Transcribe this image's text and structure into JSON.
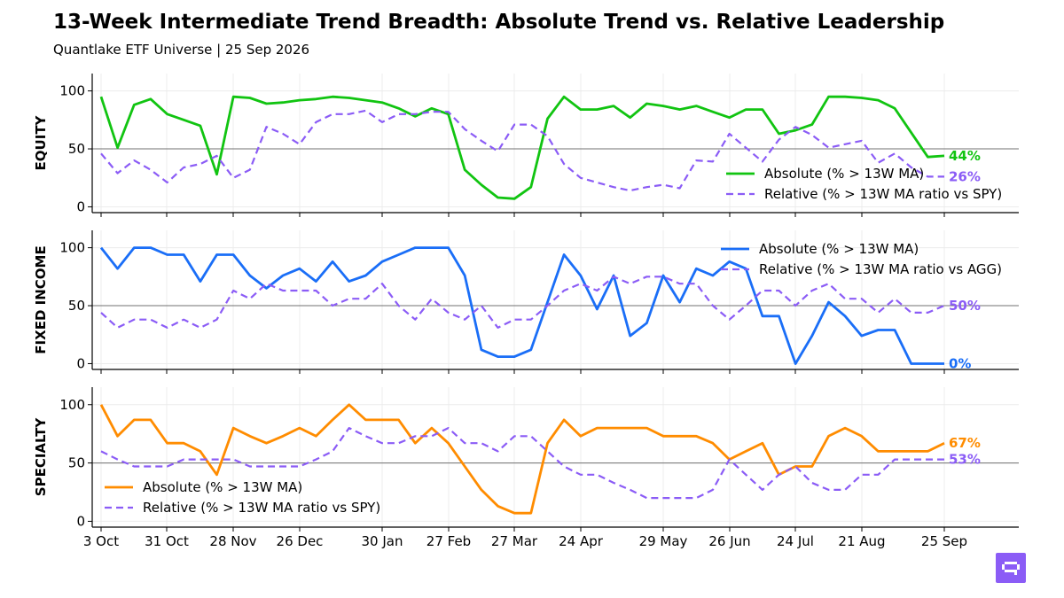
{
  "title": "13-Week Intermediate Trend Breadth: Absolute Trend vs. Relative Leadership",
  "subtitle": "Quantlake ETF Universe  |  25 Sep 2026",
  "colors": {
    "relative": "#8b5cf6",
    "logo": "#8b5cf6"
  },
  "chart_data": [
    {
      "type": "line",
      "panel": "EQUITY",
      "ylabel": "EQUITY",
      "ylim": [
        -5,
        115
      ],
      "yticks": [
        0,
        50,
        100
      ],
      "reference_line": 50,
      "legend_position": "lower-right",
      "x_tick_labels": [
        "3 Oct",
        "31 Oct",
        "28 Nov",
        "26 Dec",
        "30 Jan",
        "27 Feb",
        "27 Mar",
        "24 Apr",
        "29 May",
        "26 Jun",
        "24 Jul",
        "21 Aug",
        "25 Sep"
      ],
      "series": [
        {
          "name": "Absolute (% > 13W MA)",
          "style": "solid",
          "color": "#11c411",
          "end_label": "44%",
          "values": [
            95,
            51,
            88,
            93,
            80,
            75,
            70,
            28,
            95,
            94,
            89,
            90,
            92,
            93,
            95,
            94,
            92,
            90,
            85,
            78,
            85,
            80,
            32,
            19,
            8,
            7,
            17,
            76,
            95,
            84,
            84,
            87,
            77,
            89,
            87,
            84,
            87,
            82,
            77,
            84,
            84,
            63,
            66,
            71,
            95,
            95,
            94,
            92,
            85,
            64,
            43,
            44
          ]
        },
        {
          "name": "Relative (% > 13W MA ratio vs SPY)",
          "style": "dashed",
          "color": "#8b5cf6",
          "end_label": "26%",
          "values": [
            46,
            29,
            40,
            32,
            21,
            34,
            37,
            44,
            25,
            32,
            69,
            63,
            54,
            73,
            80,
            80,
            83,
            73,
            80,
            80,
            82,
            82,
            67,
            57,
            48,
            71,
            71,
            61,
            37,
            25,
            21,
            17,
            14,
            17,
            19,
            16,
            40,
            39,
            63,
            51,
            39,
            58,
            69,
            62,
            51,
            54,
            57,
            38,
            46,
            34,
            26,
            26
          ]
        }
      ]
    },
    {
      "type": "line",
      "panel": "FIXED INCOME",
      "ylabel": "FIXED INCOME",
      "ylim": [
        -5,
        115
      ],
      "yticks": [
        0,
        50,
        100
      ],
      "reference_line": 50,
      "legend_position": "upper-right",
      "x_tick_labels": [
        "3 Oct",
        "31 Oct",
        "28 Nov",
        "26 Dec",
        "30 Jan",
        "27 Feb",
        "27 Mar",
        "24 Apr",
        "29 May",
        "26 Jun",
        "24 Jul",
        "21 Aug",
        "25 Sep"
      ],
      "series": [
        {
          "name": "Absolute (% > 13W MA)",
          "style": "solid",
          "color": "#1a6ef7",
          "end_label": "0%",
          "values": [
            100,
            82,
            100,
            100,
            94,
            94,
            71,
            94,
            94,
            76,
            65,
            76,
            82,
            71,
            88,
            71,
            76,
            88,
            94,
            100,
            100,
            100,
            76,
            12,
            6,
            6,
            12,
            53,
            94,
            76,
            47,
            76,
            24,
            35,
            76,
            53,
            82,
            76,
            88,
            82,
            41,
            41,
            0,
            24,
            53,
            41,
            24,
            29,
            29,
            0,
            0,
            0
          ]
        },
        {
          "name": "Relative (% > 13W MA ratio vs AGG)",
          "style": "dashed",
          "color": "#8b5cf6",
          "end_label": "50%",
          "values": [
            44,
            31,
            38,
            38,
            31,
            38,
            31,
            38,
            63,
            56,
            69,
            63,
            63,
            63,
            50,
            56,
            56,
            69,
            50,
            38,
            56,
            44,
            38,
            50,
            31,
            38,
            38,
            50,
            63,
            69,
            63,
            75,
            69,
            75,
            75,
            69,
            69,
            50,
            38,
            50,
            63,
            63,
            50,
            63,
            69,
            56,
            56,
            44,
            56,
            44,
            44,
            50
          ]
        }
      ]
    },
    {
      "type": "line",
      "panel": "SPECIALTY",
      "ylabel": "SPECIALTY",
      "ylim": [
        -5,
        115
      ],
      "yticks": [
        0,
        50,
        100
      ],
      "reference_line": 50,
      "legend_position": "lower-left",
      "x_tick_labels": [
        "3 Oct",
        "31 Oct",
        "28 Nov",
        "26 Dec",
        "30 Jan",
        "27 Feb",
        "27 Mar",
        "24 Apr",
        "29 May",
        "26 Jun",
        "24 Jul",
        "21 Aug",
        "25 Sep"
      ],
      "series": [
        {
          "name": "Absolute (% > 13W MA)",
          "style": "solid",
          "color": "#ff8c00",
          "end_label": "67%",
          "values": [
            100,
            73,
            87,
            87,
            67,
            67,
            60,
            40,
            80,
            73,
            67,
            73,
            80,
            73,
            87,
            100,
            87,
            87,
            87,
            67,
            80,
            67,
            47,
            27,
            13,
            7,
            7,
            67,
            87,
            73,
            80,
            80,
            80,
            80,
            73,
            73,
            73,
            67,
            53,
            60,
            67,
            40,
            47,
            47,
            73,
            80,
            73,
            60,
            60,
            60,
            60,
            67
          ]
        },
        {
          "name": "Relative (% > 13W MA ratio vs SPY)",
          "style": "dashed",
          "color": "#8b5cf6",
          "end_label": "53%",
          "values": [
            60,
            53,
            47,
            47,
            47,
            53,
            53,
            53,
            53,
            47,
            47,
            47,
            47,
            53,
            60,
            80,
            73,
            67,
            67,
            73,
            73,
            80,
            67,
            67,
            60,
            73,
            73,
            60,
            47,
            40,
            40,
            33,
            27,
            20,
            20,
            20,
            20,
            27,
            53,
            40,
            27,
            40,
            47,
            33,
            27,
            27,
            40,
            40,
            53,
            53,
            53,
            53
          ]
        }
      ]
    }
  ]
}
